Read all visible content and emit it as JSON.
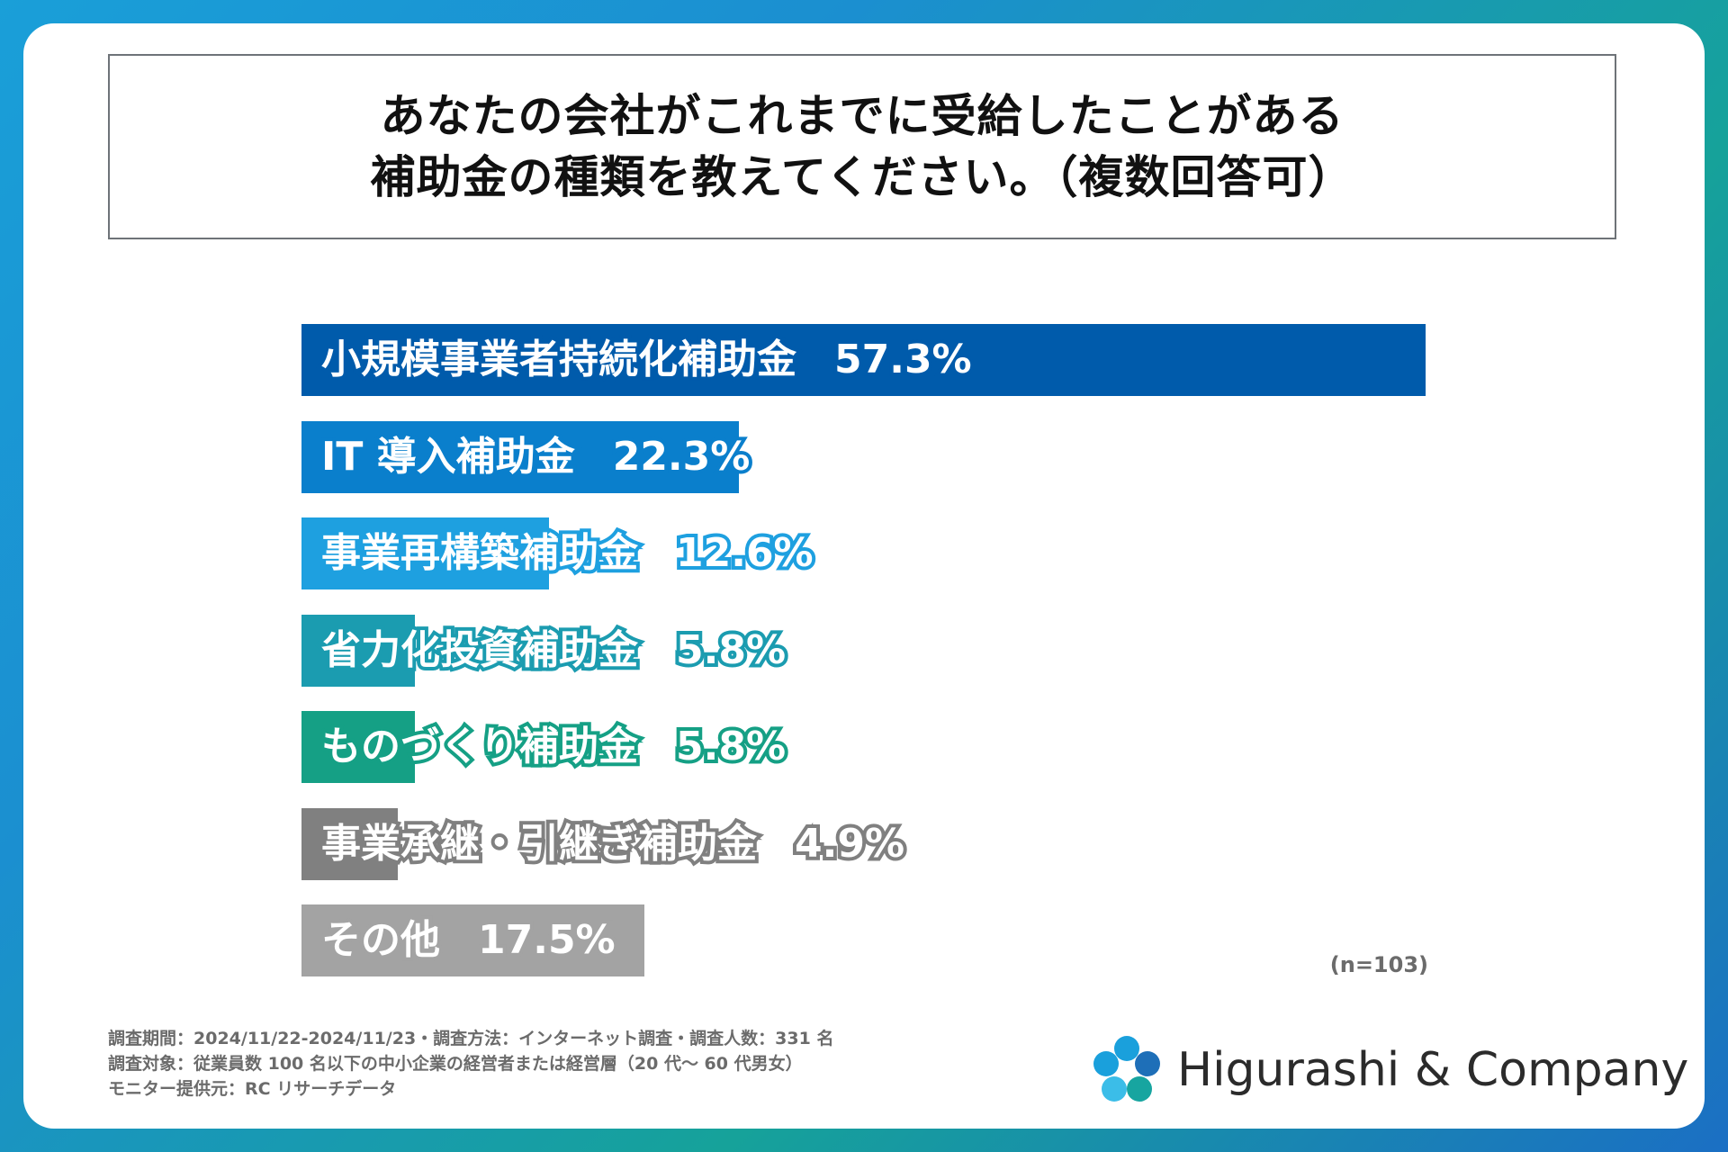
{
  "title": {
    "line1": "あなたの会社がこれまでに受給したことがある",
    "line2": "補助金の種類を教えてください。（複数回答可）"
  },
  "chart_data": {
    "type": "bar",
    "orientation": "horizontal",
    "categories": [
      "小規模事業者持続化補助金",
      "IT 導入補助金",
      "事業再構築補助金",
      "省力化投資補助金",
      "ものづくり補助金",
      "事業承継・引継ぎ補助金",
      "その他"
    ],
    "values": [
      57.3,
      22.3,
      12.6,
      5.8,
      5.8,
      4.9,
      17.5
    ],
    "value_labels": [
      "57.3%",
      "22.3%",
      "12.6%",
      "5.8%",
      "5.8%",
      "4.9%",
      "17.5%"
    ],
    "colors": [
      "#005bab",
      "#0a7fcc",
      "#1ea0e0",
      "#1b9cb0",
      "#15a085",
      "#808080",
      "#a3a3a3"
    ],
    "xlim": [
      0,
      57.3
    ],
    "sample_size": "(n=103)"
  },
  "footnote": {
    "line1": "調査期間：2024/11/22-2024/11/23・調査方法：インターネット調査・調査人数：331 名",
    "line2": "調査対象：従業員数 100 名以下の中小企業の経営者または経営層（20 代～ 60 代男女）",
    "line3": "モニター提供元：RC リサーチデータ"
  },
  "logo": {
    "text": "Higurashi & Company",
    "colors": [
      "#1aa0dc",
      "#1e6fb8",
      "#17a5a0",
      "#3bbde8"
    ]
  }
}
